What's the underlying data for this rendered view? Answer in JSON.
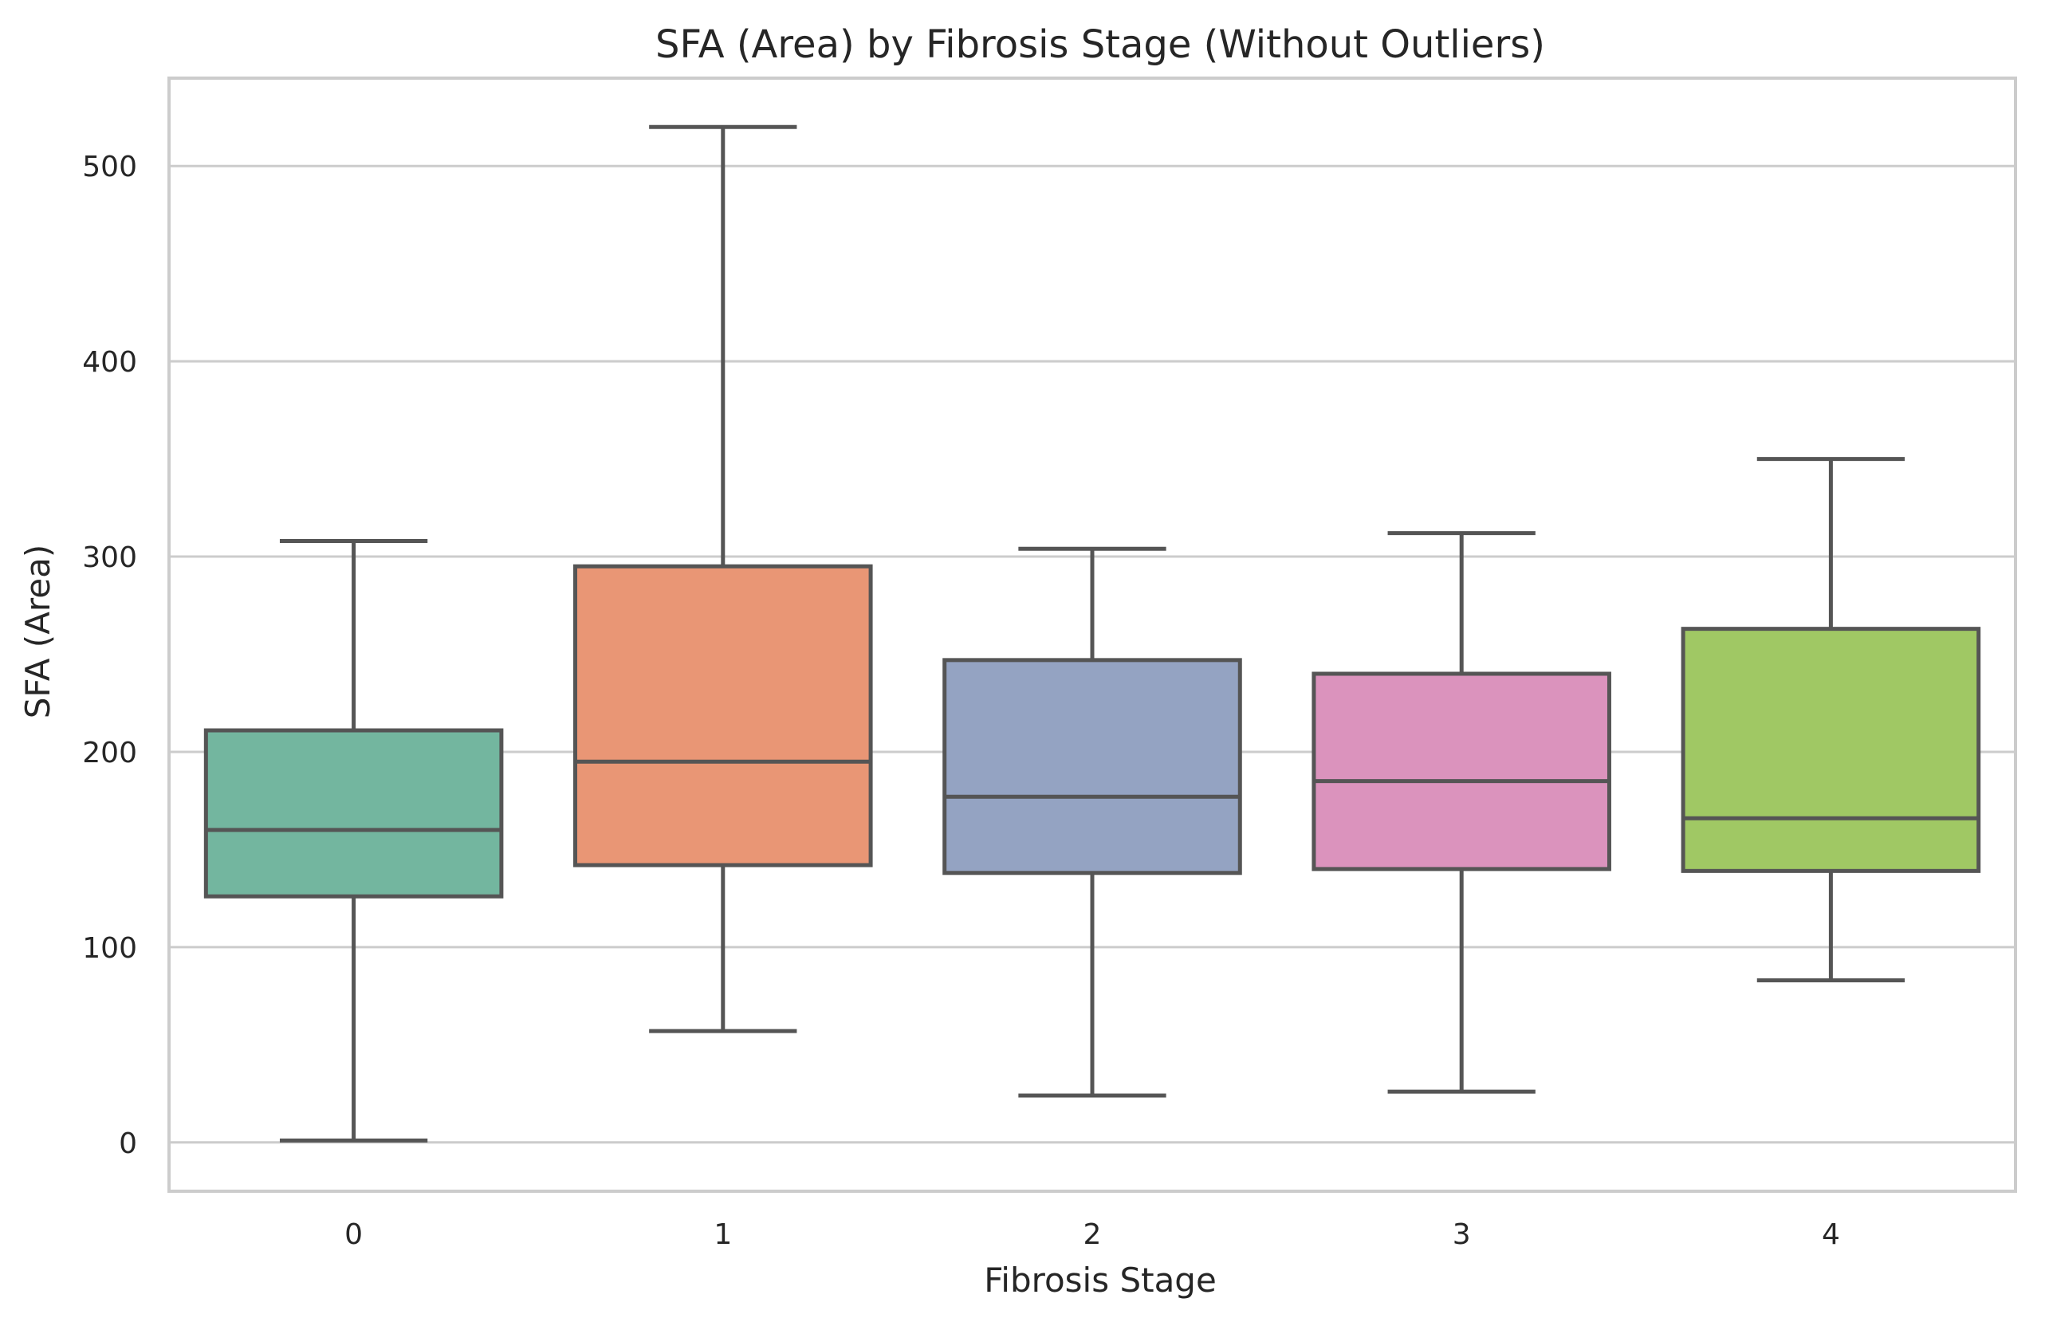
{
  "chart_data": {
    "type": "box",
    "title": "SFA (Area) by Fibrosis Stage (Without Outliers)",
    "xlabel": "Fibrosis Stage",
    "ylabel": "SFA (Area)",
    "ylim": [
      -25,
      545
    ],
    "yticks": [
      0,
      100,
      200,
      300,
      400,
      500
    ],
    "grid": "horizontal",
    "categories": [
      "0",
      "1",
      "2",
      "3",
      "4"
    ],
    "boxes": [
      {
        "category": "0",
        "whisker_low": 1,
        "q1": 126,
        "median": 160,
        "q3": 211,
        "whisker_high": 308,
        "color": "#73b69f"
      },
      {
        "category": "1",
        "whisker_low": 57,
        "q1": 142,
        "median": 195,
        "q3": 295,
        "whisker_high": 520,
        "color": "#e99675"
      },
      {
        "category": "2",
        "whisker_low": 24,
        "q1": 138,
        "median": 177,
        "q3": 247,
        "whisker_high": 304,
        "color": "#94a3c2"
      },
      {
        "category": "3",
        "whisker_low": 26,
        "q1": 140,
        "median": 185,
        "q3": 240,
        "whisker_high": 312,
        "color": "#db93bd"
      },
      {
        "category": "4",
        "whisker_low": 83,
        "q1": 139,
        "median": 166,
        "q3": 263,
        "whisker_high": 350,
        "color": "#a0c864"
      }
    ],
    "line_color": "#555555",
    "grid_color": "#cccccc",
    "spine_color": "#cccccc"
  }
}
